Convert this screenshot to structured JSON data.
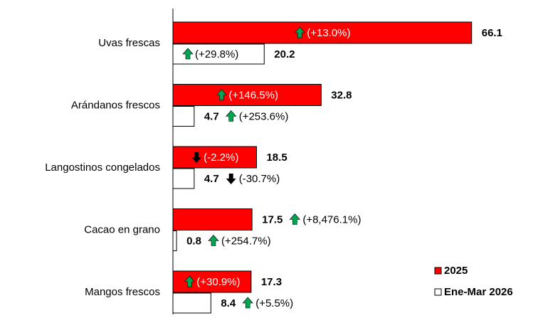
{
  "chart_data": {
    "type": "bar",
    "orientation": "horizontal",
    "categories": [
      "Uvas frescas",
      "Arándanos frescos",
      "Langostinos congelados",
      "Cacao en grano",
      "Mangos frescos"
    ],
    "series": [
      {
        "name": "2025",
        "color": "#ff0000",
        "edge": "#000000",
        "values": [
          66.1,
          32.8,
          18.5,
          17.5,
          17.3
        ],
        "changes": [
          {
            "value": 13.0,
            "label": "(+13.0%)"
          },
          {
            "value": 146.5,
            "label": "(+146.5%)"
          },
          {
            "value": -2.2,
            "label": "(-2.2%)"
          },
          {
            "value": 8476.1,
            "label": "(+8,476.1%)"
          },
          {
            "value": 30.9,
            "label": "(+30.9%)"
          }
        ]
      },
      {
        "name": "Ene-Mar 2026",
        "color": "#ffffff",
        "edge": "#000000",
        "values": [
          20.2,
          4.7,
          4.7,
          0.8,
          8.4
        ],
        "changes": [
          {
            "value": 29.8,
            "label": "(+29.8%)"
          },
          {
            "value": 253.6,
            "label": "(+253.6%)"
          },
          {
            "value": -30.7,
            "label": "(-30.7%)"
          },
          {
            "value": 254.7,
            "label": "(+254.7%)"
          },
          {
            "value": 5.5,
            "label": "(+5.5%)"
          }
        ]
      }
    ],
    "up_color": "#00a651",
    "down_color": "#000000",
    "legend": "lower right"
  }
}
